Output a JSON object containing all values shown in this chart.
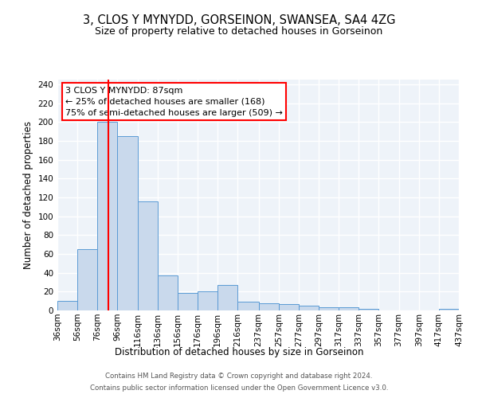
{
  "title": "3, CLOS Y MYNYDD, GORSEINON, SWANSEA, SA4 4ZG",
  "subtitle": "Size of property relative to detached houses in Gorseinon",
  "xlabel": "Distribution of detached houses by size in Gorseinon",
  "ylabel": "Number of detached properties",
  "bar_color": "#c9d9ec",
  "bar_edge_color": "#5b9bd5",
  "background_color": "#eef3f9",
  "grid_color": "#ffffff",
  "red_line_x": 87,
  "annotation_text": "3 CLOS Y MYNYDD: 87sqm\n← 25% of detached houses are smaller (168)\n75% of semi-detached houses are larger (509) →",
  "annotation_box_color": "white",
  "annotation_edge_color": "red",
  "footer_line1": "Contains HM Land Registry data © Crown copyright and database right 2024.",
  "footer_line2": "Contains public sector information licensed under the Open Government Licence v3.0.",
  "bins": [
    36,
    56,
    76,
    96,
    116,
    136,
    156,
    176,
    196,
    216,
    237,
    257,
    277,
    297,
    317,
    337,
    357,
    377,
    397,
    417,
    437
  ],
  "bin_labels": [
    "36sqm",
    "56sqm",
    "76sqm",
    "96sqm",
    "116sqm",
    "136sqm",
    "156sqm",
    "176sqm",
    "196sqm",
    "216sqm",
    "237sqm",
    "257sqm",
    "277sqm",
    "297sqm",
    "317sqm",
    "337sqm",
    "357sqm",
    "377sqm",
    "397sqm",
    "417sqm",
    "437sqm"
  ],
  "counts": [
    10,
    65,
    200,
    185,
    116,
    37,
    19,
    20,
    27,
    9,
    8,
    7,
    5,
    3,
    3,
    2,
    0,
    0,
    0,
    2
  ],
  "ylim": [
    0,
    245
  ],
  "yticks": [
    0,
    20,
    40,
    60,
    80,
    100,
    120,
    140,
    160,
    180,
    200,
    220,
    240
  ],
  "title_fontsize": 10.5,
  "subtitle_fontsize": 9,
  "ylabel_fontsize": 8.5,
  "xlabel_fontsize": 8.5,
  "tick_fontsize": 7.5,
  "annot_fontsize": 8,
  "footer_fontsize": 6.2
}
